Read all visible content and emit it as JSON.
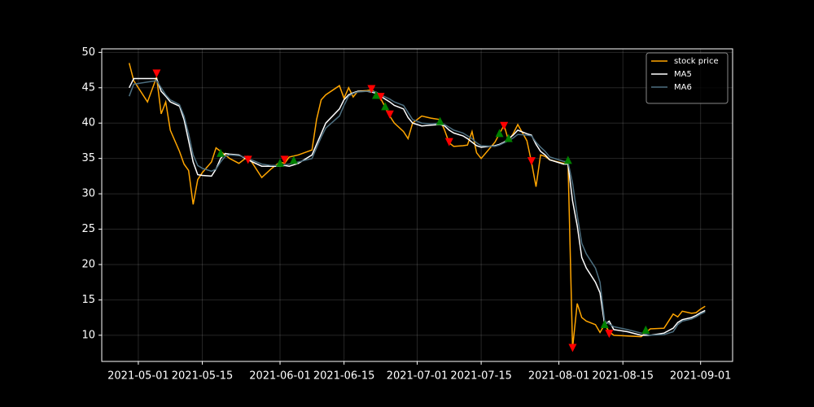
{
  "chart_data": {
    "type": "line",
    "x": [
      "2021-04-29",
      "2021-04-30",
      "2021-05-03",
      "2021-05-05",
      "2021-05-06",
      "2021-05-07",
      "2021-05-08",
      "2021-05-10",
      "2021-05-11",
      "2021-05-12",
      "2021-05-13",
      "2021-05-14",
      "2021-05-15",
      "2021-05-17",
      "2021-05-18",
      "2021-05-19",
      "2021-05-20",
      "2021-05-21",
      "2021-05-23",
      "2021-05-25",
      "2021-05-28",
      "2021-05-30",
      "2021-06-01",
      "2021-06-02",
      "2021-06-03",
      "2021-06-05",
      "2021-06-08",
      "2021-06-09",
      "2021-06-10",
      "2021-06-11",
      "2021-06-14",
      "2021-06-15",
      "2021-06-16",
      "2021-06-17",
      "2021-06-18",
      "2021-06-20",
      "2021-06-21",
      "2021-06-22",
      "2021-06-23",
      "2021-06-25",
      "2021-06-26",
      "2021-06-28",
      "2021-06-29",
      "2021-06-30",
      "2021-07-02",
      "2021-07-04",
      "2021-07-06",
      "2021-07-07",
      "2021-07-08",
      "2021-07-09",
      "2021-07-11",
      "2021-07-12",
      "2021-07-13",
      "2021-07-14",
      "2021-07-15",
      "2021-07-18",
      "2021-07-19",
      "2021-07-20",
      "2021-07-21",
      "2021-07-22",
      "2021-07-23",
      "2021-07-25",
      "2021-07-26",
      "2021-07-27",
      "2021-07-28",
      "2021-07-29",
      "2021-07-30",
      "2021-08-02",
      "2021-08-03",
      "2021-08-04",
      "2021-08-05",
      "2021-08-06",
      "2021-08-07",
      "2021-08-09",
      "2021-08-10",
      "2021-08-11",
      "2021-08-12",
      "2021-08-13",
      "2021-08-16",
      "2021-08-19",
      "2021-08-21",
      "2021-08-24",
      "2021-08-26",
      "2021-08-27",
      "2021-08-28",
      "2021-08-30",
      "2021-08-31",
      "2021-09-01",
      "2021-09-02"
    ],
    "series": [
      {
        "name": "stock price",
        "color": "#ffa500",
        "values": [
          48.5,
          46.0,
          43.0,
          46.5,
          41.3,
          43.0,
          39.0,
          36.0,
          34.2,
          33.3,
          28.5,
          32.0,
          33.0,
          34.5,
          36.5,
          36.0,
          35.5,
          35.0,
          34.3,
          35.3,
          32.3,
          33.5,
          34.5,
          34.3,
          35.2,
          35.5,
          36.2,
          40.5,
          43.3,
          44.0,
          45.3,
          43.5,
          45.0,
          43.7,
          44.5,
          44.6,
          44.7,
          44.3,
          43.5,
          41.0,
          40.0,
          38.8,
          37.8,
          40.0,
          41.0,
          40.7,
          40.5,
          39.0,
          37.2,
          36.7,
          36.8,
          36.9,
          38.8,
          35.8,
          35.0,
          37.3,
          38.5,
          39.7,
          37.5,
          38.5,
          39.8,
          37.5,
          34.5,
          31.0,
          35.5,
          35.3,
          34.8,
          34.3,
          34.5,
          8.2,
          14.5,
          12.5,
          12.0,
          11.5,
          10.4,
          11.5,
          10.5,
          10.0,
          9.9,
          9.8,
          10.9,
          11.0,
          13.0,
          12.6,
          13.4,
          13.1,
          13.2,
          13.7,
          14.1
        ]
      },
      {
        "name": "MA5",
        "color": "#ffffff",
        "values": [
          45.0,
          46.3,
          46.3,
          46.3,
          44.5,
          43.8,
          43.0,
          42.4,
          40.5,
          37.5,
          34.5,
          32.7,
          32.6,
          32.5,
          33.5,
          35.0,
          35.7,
          35.6,
          35.5,
          34.8,
          33.9,
          33.9,
          33.9,
          34.0,
          33.9,
          34.3,
          35.5,
          37.0,
          38.5,
          40.0,
          42.0,
          43.3,
          44.0,
          44.3,
          44.5,
          44.5,
          44.4,
          44.2,
          43.8,
          43.0,
          42.5,
          42.0,
          40.8,
          40.0,
          39.6,
          39.7,
          39.8,
          39.6,
          39.0,
          38.6,
          38.2,
          37.8,
          37.3,
          36.8,
          36.6,
          36.8,
          37.0,
          37.3,
          37.8,
          38.3,
          39.0,
          38.5,
          38.3,
          37.0,
          36.0,
          35.5,
          34.8,
          34.2,
          34.2,
          29.0,
          25.5,
          21.0,
          19.5,
          17.5,
          16.0,
          11.5,
          12.0,
          10.8,
          10.5,
          10.0,
          10.0,
          10.3,
          11.0,
          11.8,
          12.2,
          12.5,
          12.8,
          13.2,
          13.5
        ]
      },
      {
        "name": "MA6",
        "color": "#4d6f80",
        "values": [
          43.8,
          45.5,
          45.8,
          46.0,
          45.0,
          44.0,
          43.3,
          42.6,
          41.0,
          38.5,
          35.5,
          34.0,
          33.6,
          33.2,
          33.5,
          34.5,
          35.3,
          35.5,
          35.4,
          35.0,
          34.2,
          34.0,
          34.0,
          34.1,
          34.2,
          34.5,
          35.0,
          36.5,
          38.0,
          39.3,
          41.0,
          42.5,
          43.8,
          44.2,
          44.4,
          44.5,
          44.5,
          44.4,
          44.0,
          43.4,
          43.0,
          42.5,
          41.5,
          40.5,
          40.0,
          39.9,
          40.0,
          39.8,
          39.4,
          39.0,
          38.6,
          38.2,
          37.8,
          37.2,
          36.8,
          36.7,
          36.9,
          37.2,
          37.5,
          37.9,
          38.4,
          38.3,
          38.2,
          37.3,
          36.6,
          36.0,
          35.2,
          34.6,
          34.5,
          31.5,
          27.0,
          23.0,
          21.5,
          19.5,
          17.5,
          12.0,
          11.6,
          11.2,
          10.8,
          10.3,
          10.0,
          10.1,
          10.5,
          11.5,
          12.0,
          12.3,
          12.6,
          13.0,
          13.3
        ]
      }
    ],
    "markers": [
      {
        "color": "#ff0000",
        "marker": "v",
        "x": [
          "2021-05-05",
          "2021-05-25",
          "2021-06-02",
          "2021-06-21",
          "2021-06-23",
          "2021-06-25",
          "2021-07-08",
          "2021-07-20",
          "2021-07-26",
          "2021-08-04",
          "2021-08-12"
        ],
        "values": [
          47.0,
          34.8,
          34.8,
          44.8,
          43.7,
          41.2,
          37.3,
          39.6,
          34.6,
          8.2,
          10.2
        ]
      },
      {
        "color": "#008000",
        "marker": "^",
        "x": [
          "2021-05-19",
          "2021-06-01",
          "2021-06-04",
          "2021-06-22",
          "2021-06-24",
          "2021-07-06",
          "2021-07-19",
          "2021-07-21",
          "2021-08-03",
          "2021-08-11",
          "2021-08-20"
        ],
        "values": [
          35.8,
          34.4,
          34.8,
          44.0,
          42.4,
          40.3,
          38.6,
          37.9,
          34.8,
          11.6,
          10.8
        ]
      }
    ],
    "xlim": [
      "2021-04-23",
      "2021-09-08"
    ],
    "xticks": [
      "2021-05-01",
      "2021-05-15",
      "2021-06-01",
      "2021-06-15",
      "2021-07-01",
      "2021-07-15",
      "2021-08-01",
      "2021-08-15",
      "2021-09-01"
    ],
    "ylim": [
      6.3,
      50.5
    ],
    "yticks": [
      10,
      15,
      20,
      25,
      30,
      35,
      40,
      45,
      50
    ],
    "grid": true,
    "legend": "upper right"
  }
}
